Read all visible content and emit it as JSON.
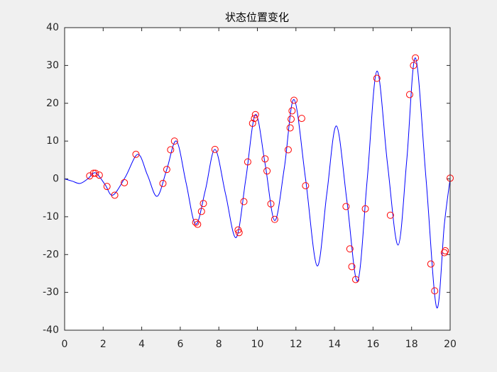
{
  "chart_data": {
    "type": "line",
    "title": "状态位置变化",
    "xlim": [
      0,
      20
    ],
    "ylim": [
      -40,
      40
    ],
    "xticks": [
      0,
      2,
      4,
      6,
      8,
      10,
      12,
      14,
      16,
      18,
      20
    ],
    "yticks": [
      -40,
      -30,
      -20,
      -10,
      0,
      10,
      20,
      30,
      40
    ],
    "series": [
      {
        "color": "#0000ff",
        "marker": "none",
        "line": true,
        "x": [
          0,
          0.4,
          0.8,
          1.2,
          1.6,
          2.1,
          2.5,
          3.15,
          3.8,
          4.3,
          4.8,
          5.3,
          5.8,
          6.3,
          6.8,
          7.3,
          7.8,
          8.35,
          8.9,
          9.4,
          9.9,
          10.4,
          10.9,
          11.4,
          11.9,
          12.5,
          13.1,
          13.6,
          14.1,
          14.65,
          15.2,
          15.7,
          16.2,
          16.75,
          17.3,
          17.75,
          18.2,
          18.75,
          19.3,
          19.7,
          20
        ],
        "values": [
          0,
          -0.6,
          -1.2,
          0,
          1.6,
          -1.5,
          -4.3,
          0.5,
          6.5,
          1,
          -4.6,
          2.5,
          10,
          -1,
          -12,
          -3,
          7.8,
          -4,
          -15.5,
          0,
          17,
          4,
          -11,
          3,
          21,
          0,
          -23,
          -4,
          14,
          -6,
          -27,
          0,
          28.5,
          4,
          -17.5,
          5,
          32,
          0,
          -34,
          -12,
          0
        ]
      },
      {
        "color": "#ff0000",
        "marker": "circle",
        "line": false,
        "x": [
          1.3,
          1.5,
          1.6,
          1.8,
          2.2,
          2.6,
          3.1,
          3.7,
          5.1,
          5.3,
          5.5,
          5.7,
          6.8,
          6.9,
          7.1,
          7.2,
          7.8,
          9.0,
          9.05,
          9.3,
          9.5,
          9.75,
          9.85,
          9.9,
          10.4,
          10.5,
          10.7,
          10.9,
          11.6,
          11.7,
          11.75,
          11.8,
          11.9,
          12.3,
          12.5,
          14.6,
          14.8,
          14.9,
          15.1,
          15.6,
          16.2,
          16.9,
          17.9,
          18.1,
          18.2,
          19.0,
          19.2,
          19.7,
          19.75,
          20
        ],
        "values": [
          0.8,
          1.5,
          1.5,
          1,
          -2,
          -4.3,
          -1,
          6.5,
          -1.2,
          2.5,
          7.7,
          10,
          -11.5,
          -12,
          -8.6,
          -6.5,
          7.8,
          -13.5,
          -14.2,
          -6,
          4.5,
          14.7,
          16,
          17,
          5.3,
          2.1,
          -6.6,
          -10.7,
          7.7,
          13.5,
          15.8,
          18,
          20.8,
          16,
          -1.8,
          -7.3,
          -18.5,
          -23.2,
          -26.6,
          -7.9,
          26.6,
          -9.6,
          22.3,
          30,
          32,
          -22.5,
          -29.6,
          -19.5,
          -19,
          0.2
        ]
      }
    ]
  }
}
